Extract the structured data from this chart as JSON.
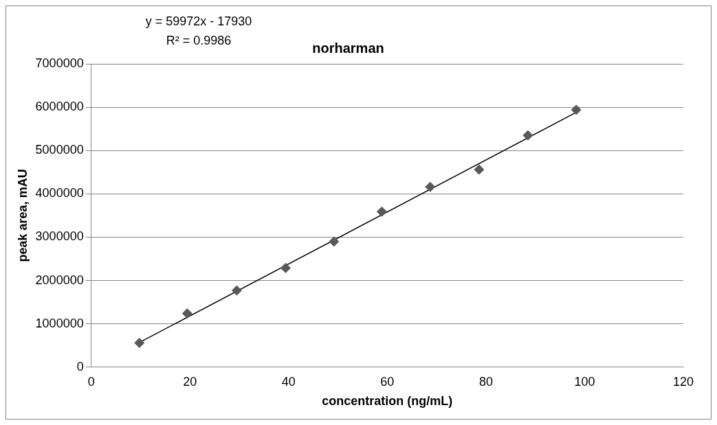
{
  "chart_data": {
    "type": "scatter",
    "title": "norharman",
    "xlabel": "concentration (ng/mL)",
    "ylabel": "peak area, mAU",
    "annotations": [
      "y = 59972x - 17930",
      "R² = 0.9986"
    ],
    "series": [
      {
        "type": "scatter",
        "color": "#595959",
        "marker": "diamond",
        "x": [
          9.77,
          19.45,
          29.5,
          39.4,
          49.2,
          58.9,
          68.7,
          78.6,
          88.5,
          98.3
        ],
        "values": [
          560000,
          1240000,
          1770000,
          2290000,
          2900000,
          3590000,
          4160000,
          4560000,
          5350000,
          5940000
        ]
      },
      {
        "type": "line",
        "color": "#000000",
        "marker": "none",
        "line_style": "solid",
        "x": [
          9.77,
          98.3
        ],
        "values": [
          570000,
          5880000
        ]
      }
    ],
    "xlim": [
      0,
      120
    ],
    "xticks": [
      0,
      20,
      40,
      60,
      80,
      100,
      120
    ],
    "ylim": [
      0,
      7000000
    ],
    "yticks": [
      0,
      1000000,
      2000000,
      3000000,
      4000000,
      5000000,
      6000000,
      7000000
    ],
    "grid": "y",
    "legend": false
  }
}
